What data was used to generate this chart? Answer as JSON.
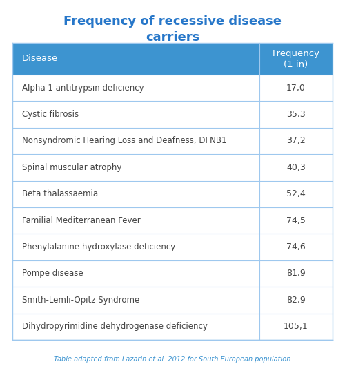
{
  "title_line1": "Frequency of recessive disease",
  "title_line2": "carriers",
  "title_color": "#2777C9",
  "header_bg_color": "#3D94D0",
  "header_text_color": "#FFFFFF",
  "header_col1": "Disease",
  "header_col2": "Frequency\n(1 in)",
  "border_color": "#9EC8EE",
  "text_color": "#444444",
  "footnote": "Table adapted from Lazarin et al. 2012 for South European population",
  "footnote_color": "#3D94D0",
  "diseases": [
    "Alpha 1 antitrypsin deficiency",
    "Cystic fibrosis",
    "Nonsyndromic Hearing Loss and Deafness, DFNB1",
    "Spinal muscular atrophy",
    "Beta thalassaemia",
    "Familial Mediterranean Fever",
    "Phenylalanine hydroxylase deficiency",
    "Pompe disease",
    "Smith-Lemli-Opitz Syndrome",
    "Dihydropyrimidine dehydrogenase deficiency"
  ],
  "frequencies": [
    "17,0",
    "35,3",
    "37,2",
    "40,3",
    "52,4",
    "74,5",
    "74,6",
    "81,9",
    "82,9",
    "105,1"
  ]
}
